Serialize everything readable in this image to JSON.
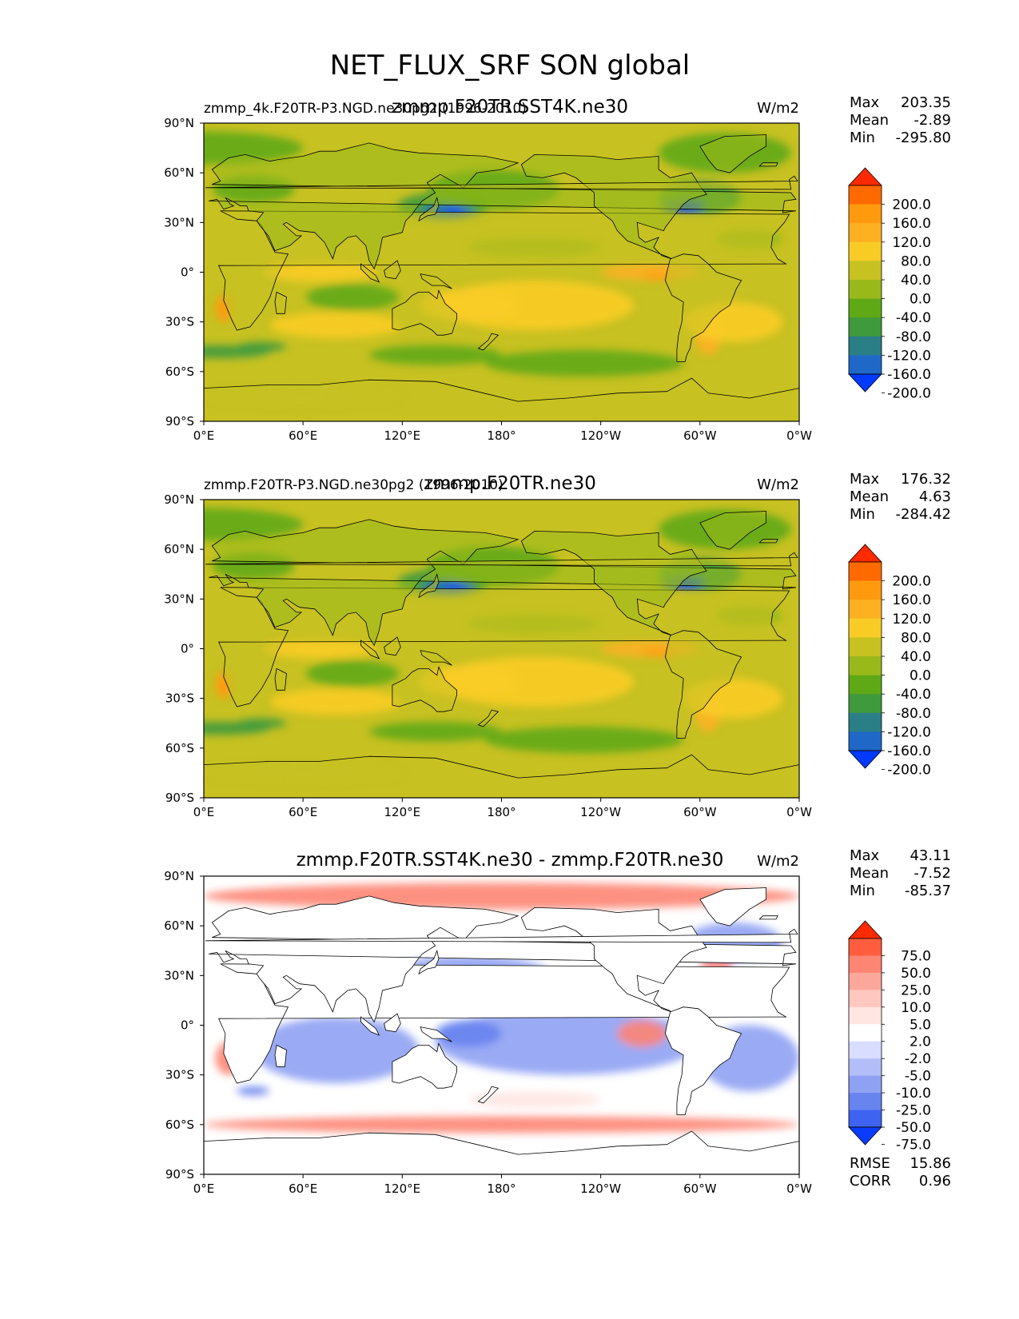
{
  "figure_title": "NET_FLUX_SRF SON global",
  "chart_data": [
    {
      "type": "heatmap",
      "panel": "test",
      "title": "zmmp.F20TR.SST4K.ne30",
      "left_title": "zmmp_4k.F20TR-P3.NGD.ne30pg2 (1996-2010)",
      "units": "W/m2",
      "stats": [
        {
          "label": "Max",
          "value": "203.35"
        },
        {
          "label": "Mean",
          "value": "-2.89"
        },
        {
          "label": "Min",
          "value": "-295.80"
        }
      ],
      "colorbar_levels": [
        "200.0",
        "160.0",
        "120.0",
        "80.0",
        "40.0",
        "0.0",
        "-40.0",
        "-80.0",
        "-120.0",
        "-160.0",
        "-200.0"
      ],
      "colorbar_colors": [
        "#ff2a00",
        "#ff6a00",
        "#ff9a0f",
        "#fdb022",
        "#f9cc25",
        "#c7c122",
        "#99b91b",
        "#5fa816",
        "#3f9a3d",
        "#2a7f86",
        "#1f68c7",
        "#0039ff"
      ],
      "xticks": [
        "0°E",
        "60°E",
        "120°E",
        "180°",
        "120°W",
        "60°W",
        "0°W"
      ],
      "yticks": [
        "90°N",
        "60°N",
        "30°N",
        "0°",
        "30°S",
        "60°S",
        "90°S"
      ]
    },
    {
      "type": "heatmap",
      "panel": "reference",
      "title": "zmmp.F20TR.ne30",
      "left_title": "zmmp.F20TR-P3.NGD.ne30pg2 (1996-2010)",
      "units": "W/m2",
      "stats": [
        {
          "label": "Max",
          "value": "176.32"
        },
        {
          "label": "Mean",
          "value": "4.63"
        },
        {
          "label": "Min",
          "value": "-284.42"
        }
      ],
      "colorbar_levels": [
        "200.0",
        "160.0",
        "120.0",
        "80.0",
        "40.0",
        "0.0",
        "-40.0",
        "-80.0",
        "-120.0",
        "-160.0",
        "-200.0"
      ],
      "colorbar_colors": [
        "#ff2a00",
        "#ff6a00",
        "#ff9a0f",
        "#fdb022",
        "#f9cc25",
        "#c7c122",
        "#99b91b",
        "#5fa816",
        "#3f9a3d",
        "#2a7f86",
        "#1f68c7",
        "#0039ff"
      ],
      "xticks": [
        "0°E",
        "60°E",
        "120°E",
        "180°",
        "120°W",
        "60°W",
        "0°W"
      ],
      "yticks": [
        "90°N",
        "60°N",
        "30°N",
        "0°",
        "30°S",
        "60°S",
        "90°S"
      ]
    },
    {
      "type": "heatmap",
      "panel": "difference",
      "title": "zmmp.F20TR.SST4K.ne30 - zmmp.F20TR.ne30",
      "left_title": "",
      "units": "W/m2",
      "stats": [
        {
          "label": "Max",
          "value": "43.11"
        },
        {
          "label": "Mean",
          "value": "-7.52"
        },
        {
          "label": "Min",
          "value": "-85.37"
        }
      ],
      "colorbar_levels": [
        "75.0",
        "50.0",
        "25.0",
        "10.0",
        "5.0",
        "2.0",
        "-2.0",
        "-5.0",
        "-10.0",
        "-25.0",
        "-50.0",
        "-75.0"
      ],
      "colorbar_colors": [
        "#ff2a00",
        "#ff5d3e",
        "#fd8574",
        "#fca79c",
        "#fec7c0",
        "#ffe6e2",
        "#ffffff",
        "#d9ddff",
        "#b3bdf7",
        "#8fa1f3",
        "#6784ef",
        "#3e63f0",
        "#0a3cff"
      ],
      "xticks": [
        "0°E",
        "60°E",
        "120°E",
        "180°",
        "120°W",
        "60°W",
        "0°W"
      ],
      "yticks": [
        "90°N",
        "60°N",
        "30°N",
        "0°",
        "30°S",
        "60°S",
        "90°S"
      ],
      "extra_stats": [
        {
          "label": "RMSE",
          "value": "15.86"
        },
        {
          "label": "CORR",
          "value": "0.96"
        }
      ]
    }
  ]
}
